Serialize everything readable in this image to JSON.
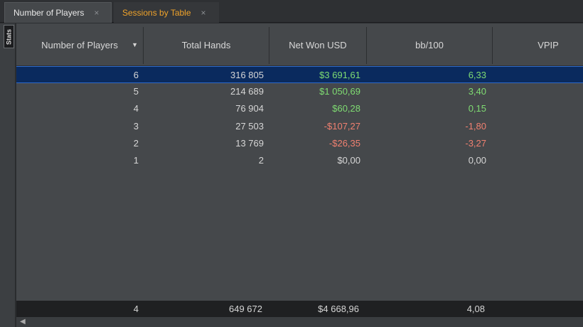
{
  "tabs": [
    {
      "label": "Number of Players",
      "close": "×"
    },
    {
      "label": "Sessions by Table",
      "close": "×"
    }
  ],
  "side_panel": {
    "label": "Stats"
  },
  "columns": [
    "Number of Players",
    "Total Hands",
    "Net Won USD",
    "bb/100",
    "VPIP"
  ],
  "rows": [
    {
      "players": "6",
      "hands": "316 805",
      "net": "$3 691,61",
      "bb": "6,33",
      "net_class": "pos",
      "bb_class": "pos"
    },
    {
      "players": "5",
      "hands": "214 689",
      "net": "$1 050,69",
      "bb": "3,40",
      "net_class": "pos",
      "bb_class": "pos"
    },
    {
      "players": "4",
      "hands": "76 904",
      "net": "$60,28",
      "bb": "0,15",
      "net_class": "pos",
      "bb_class": "pos"
    },
    {
      "players": "3",
      "hands": "27 503",
      "net": "-$107,27",
      "bb": "-1,80",
      "net_class": "neg",
      "bb_class": "neg"
    },
    {
      "players": "2",
      "hands": "13 769",
      "net": "-$26,35",
      "bb": "-3,27",
      "net_class": "neg",
      "bb_class": "neg"
    },
    {
      "players": "1",
      "hands": "2",
      "net": "$0,00",
      "bb": "0,00",
      "net_class": "neu",
      "bb_class": "neu"
    }
  ],
  "totals": {
    "players": "4",
    "hands": "649 672",
    "net": "$4 668,96",
    "bb": "4,08"
  },
  "colors": {
    "positive": "#7fdc72",
    "negative": "#f08070",
    "selection": "#0a2a5e",
    "tab_inactive_text": "#f0a32a"
  },
  "icons": {
    "sort": "sort-descending-icon",
    "close": "close-icon",
    "scroll_left": "scroll-left-icon"
  }
}
